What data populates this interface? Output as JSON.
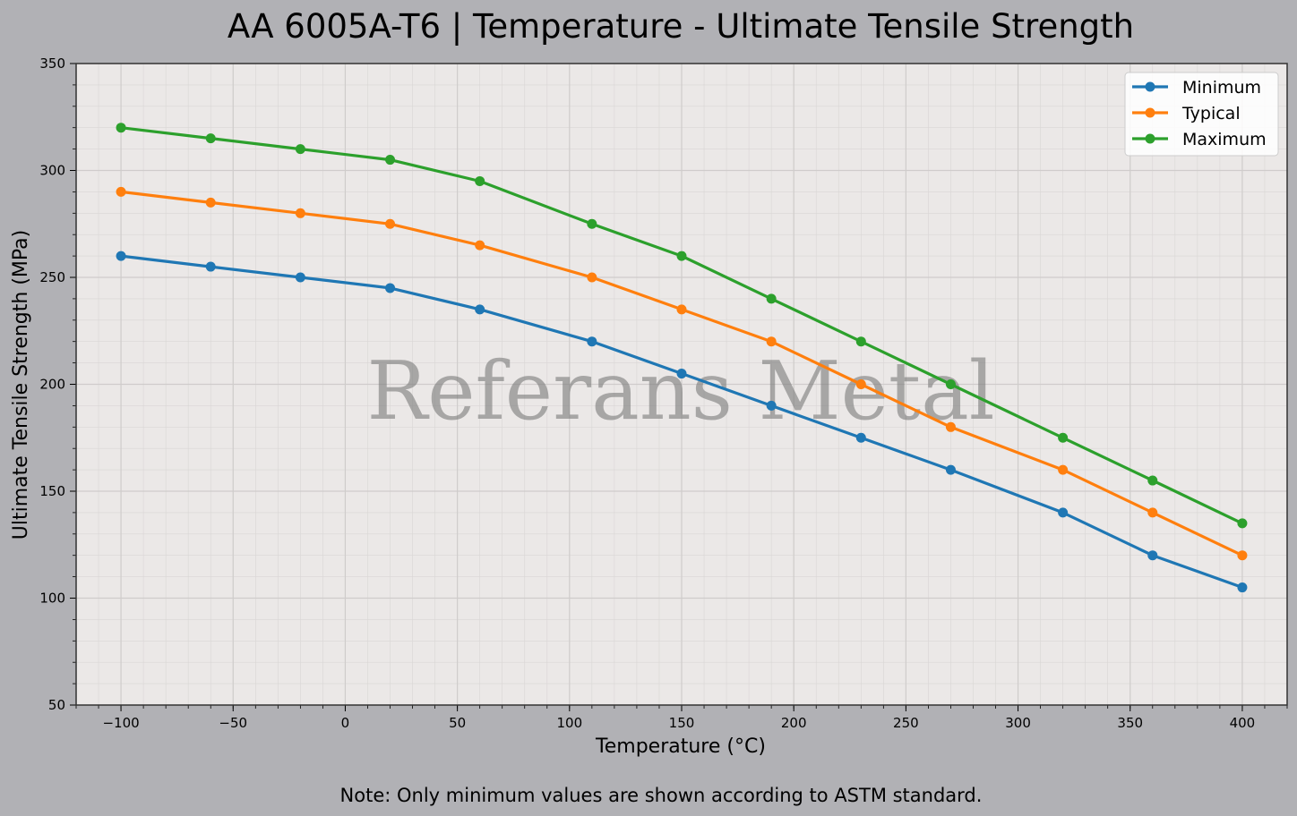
{
  "chart_data": {
    "type": "line",
    "title": "AA 6005A-T6 | Temperature - Ultimate Tensile Strength",
    "xlabel": "Temperature (°C)",
    "ylabel": "Ultimate Tensile Strength (MPa)",
    "x": [
      -100,
      -60,
      -20,
      20,
      60,
      110,
      150,
      190,
      230,
      270,
      320,
      360,
      400
    ],
    "series": [
      {
        "name": "Minimum",
        "color": "#1f77b4",
        "values": [
          260,
          255,
          250,
          245,
          235,
          220,
          205,
          190,
          175,
          160,
          140,
          120,
          105
        ]
      },
      {
        "name": "Typical",
        "color": "#ff7f0e",
        "values": [
          290,
          285,
          280,
          275,
          265,
          250,
          235,
          220,
          200,
          180,
          160,
          140,
          120
        ]
      },
      {
        "name": "Maximum",
        "color": "#2ca02c",
        "values": [
          320,
          315,
          310,
          305,
          295,
          275,
          260,
          240,
          220,
          200,
          175,
          155,
          135
        ]
      }
    ],
    "xlim": [
      -120,
      420
    ],
    "ylim": [
      50,
      350
    ],
    "xticks": [
      -100,
      -50,
      0,
      50,
      100,
      150,
      200,
      250,
      300,
      350,
      400
    ],
    "xtick_labels": [
      "−100",
      "−50",
      "0",
      "50",
      "100",
      "150",
      "200",
      "250",
      "300",
      "350",
      "400"
    ],
    "yticks": [
      50,
      100,
      150,
      200,
      250,
      300,
      350
    ],
    "ytick_labels": [
      "50",
      "100",
      "150",
      "200",
      "250",
      "300",
      "350"
    ],
    "grid": true,
    "legend_position": "top-right",
    "watermark": "Referans Metal",
    "note": "Note: Only minimum values are shown according to ASTM standard."
  }
}
